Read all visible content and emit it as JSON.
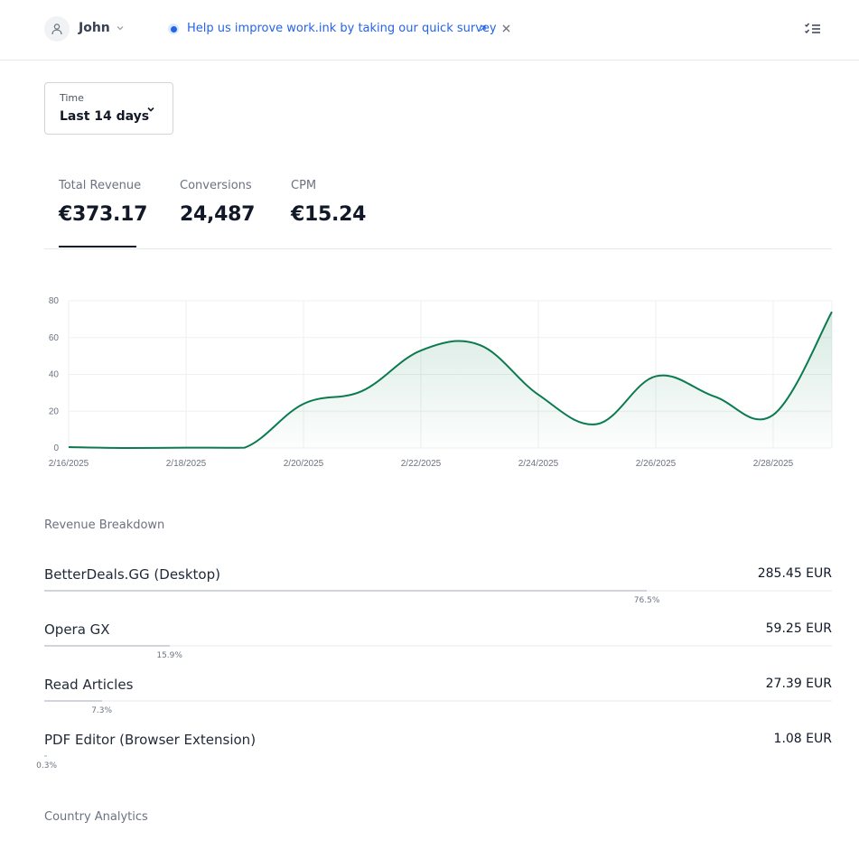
{
  "header": {
    "user_name": "John",
    "survey_text": "Help us improve work.ink by taking our quick survey",
    "colors": {
      "survey_link": "#2563eb"
    }
  },
  "filters": {
    "time_label": "Time",
    "time_value": "Last 14 days"
  },
  "metrics": {
    "tabs": [
      {
        "label": "Total Revenue",
        "value": "€373.17",
        "active": true
      },
      {
        "label": "Conversions",
        "value": "24,487",
        "active": false
      },
      {
        "label": "CPM",
        "value": "€15.24",
        "active": false
      }
    ]
  },
  "chart_data": {
    "type": "area",
    "title": "",
    "xlabel": "",
    "ylabel": "",
    "ylim": [
      0,
      80
    ],
    "y_ticks": [
      "0",
      "20",
      "40",
      "60",
      "80"
    ],
    "x_tick_labels": [
      "2/16/2025",
      "2/18/2025",
      "2/20/2025",
      "2/22/2025",
      "2/24/2025",
      "2/26/2025",
      "2/28/2025"
    ],
    "x": [
      "2/16/2025",
      "2/17/2025",
      "2/18/2025",
      "2/19/2025",
      "2/20/2025",
      "2/21/2025",
      "2/22/2025",
      "2/23/2025",
      "2/24/2025",
      "2/25/2025",
      "2/26/2025",
      "2/27/2025",
      "2/28/2025",
      "3/1/2025"
    ],
    "series": [
      {
        "values": [
          0.5,
          0,
          0.2,
          0.2,
          24,
          31,
          53,
          56,
          29,
          13,
          39,
          28,
          18,
          74
        ]
      }
    ],
    "grid": true,
    "colors": {
      "line": "#0b7a4e",
      "fill": "#0b7a4e"
    }
  },
  "revenue_breakdown": {
    "title": "Revenue Breakdown",
    "items": [
      {
        "name": "BetterDeals.GG (Desktop)",
        "amount": "285.45 EUR",
        "percent": "76.5%",
        "fraction": 0.765
      },
      {
        "name": "Opera GX",
        "amount": "59.25 EUR",
        "percent": "15.9%",
        "fraction": 0.159
      },
      {
        "name": "Read Articles",
        "amount": "27.39 EUR",
        "percent": "7.3%",
        "fraction": 0.073
      },
      {
        "name": "PDF Editor (Browser Extension)",
        "amount": "1.08 EUR",
        "percent": "0.3%",
        "fraction": 0.003
      }
    ]
  },
  "country_analytics": {
    "title": "Country Analytics"
  }
}
